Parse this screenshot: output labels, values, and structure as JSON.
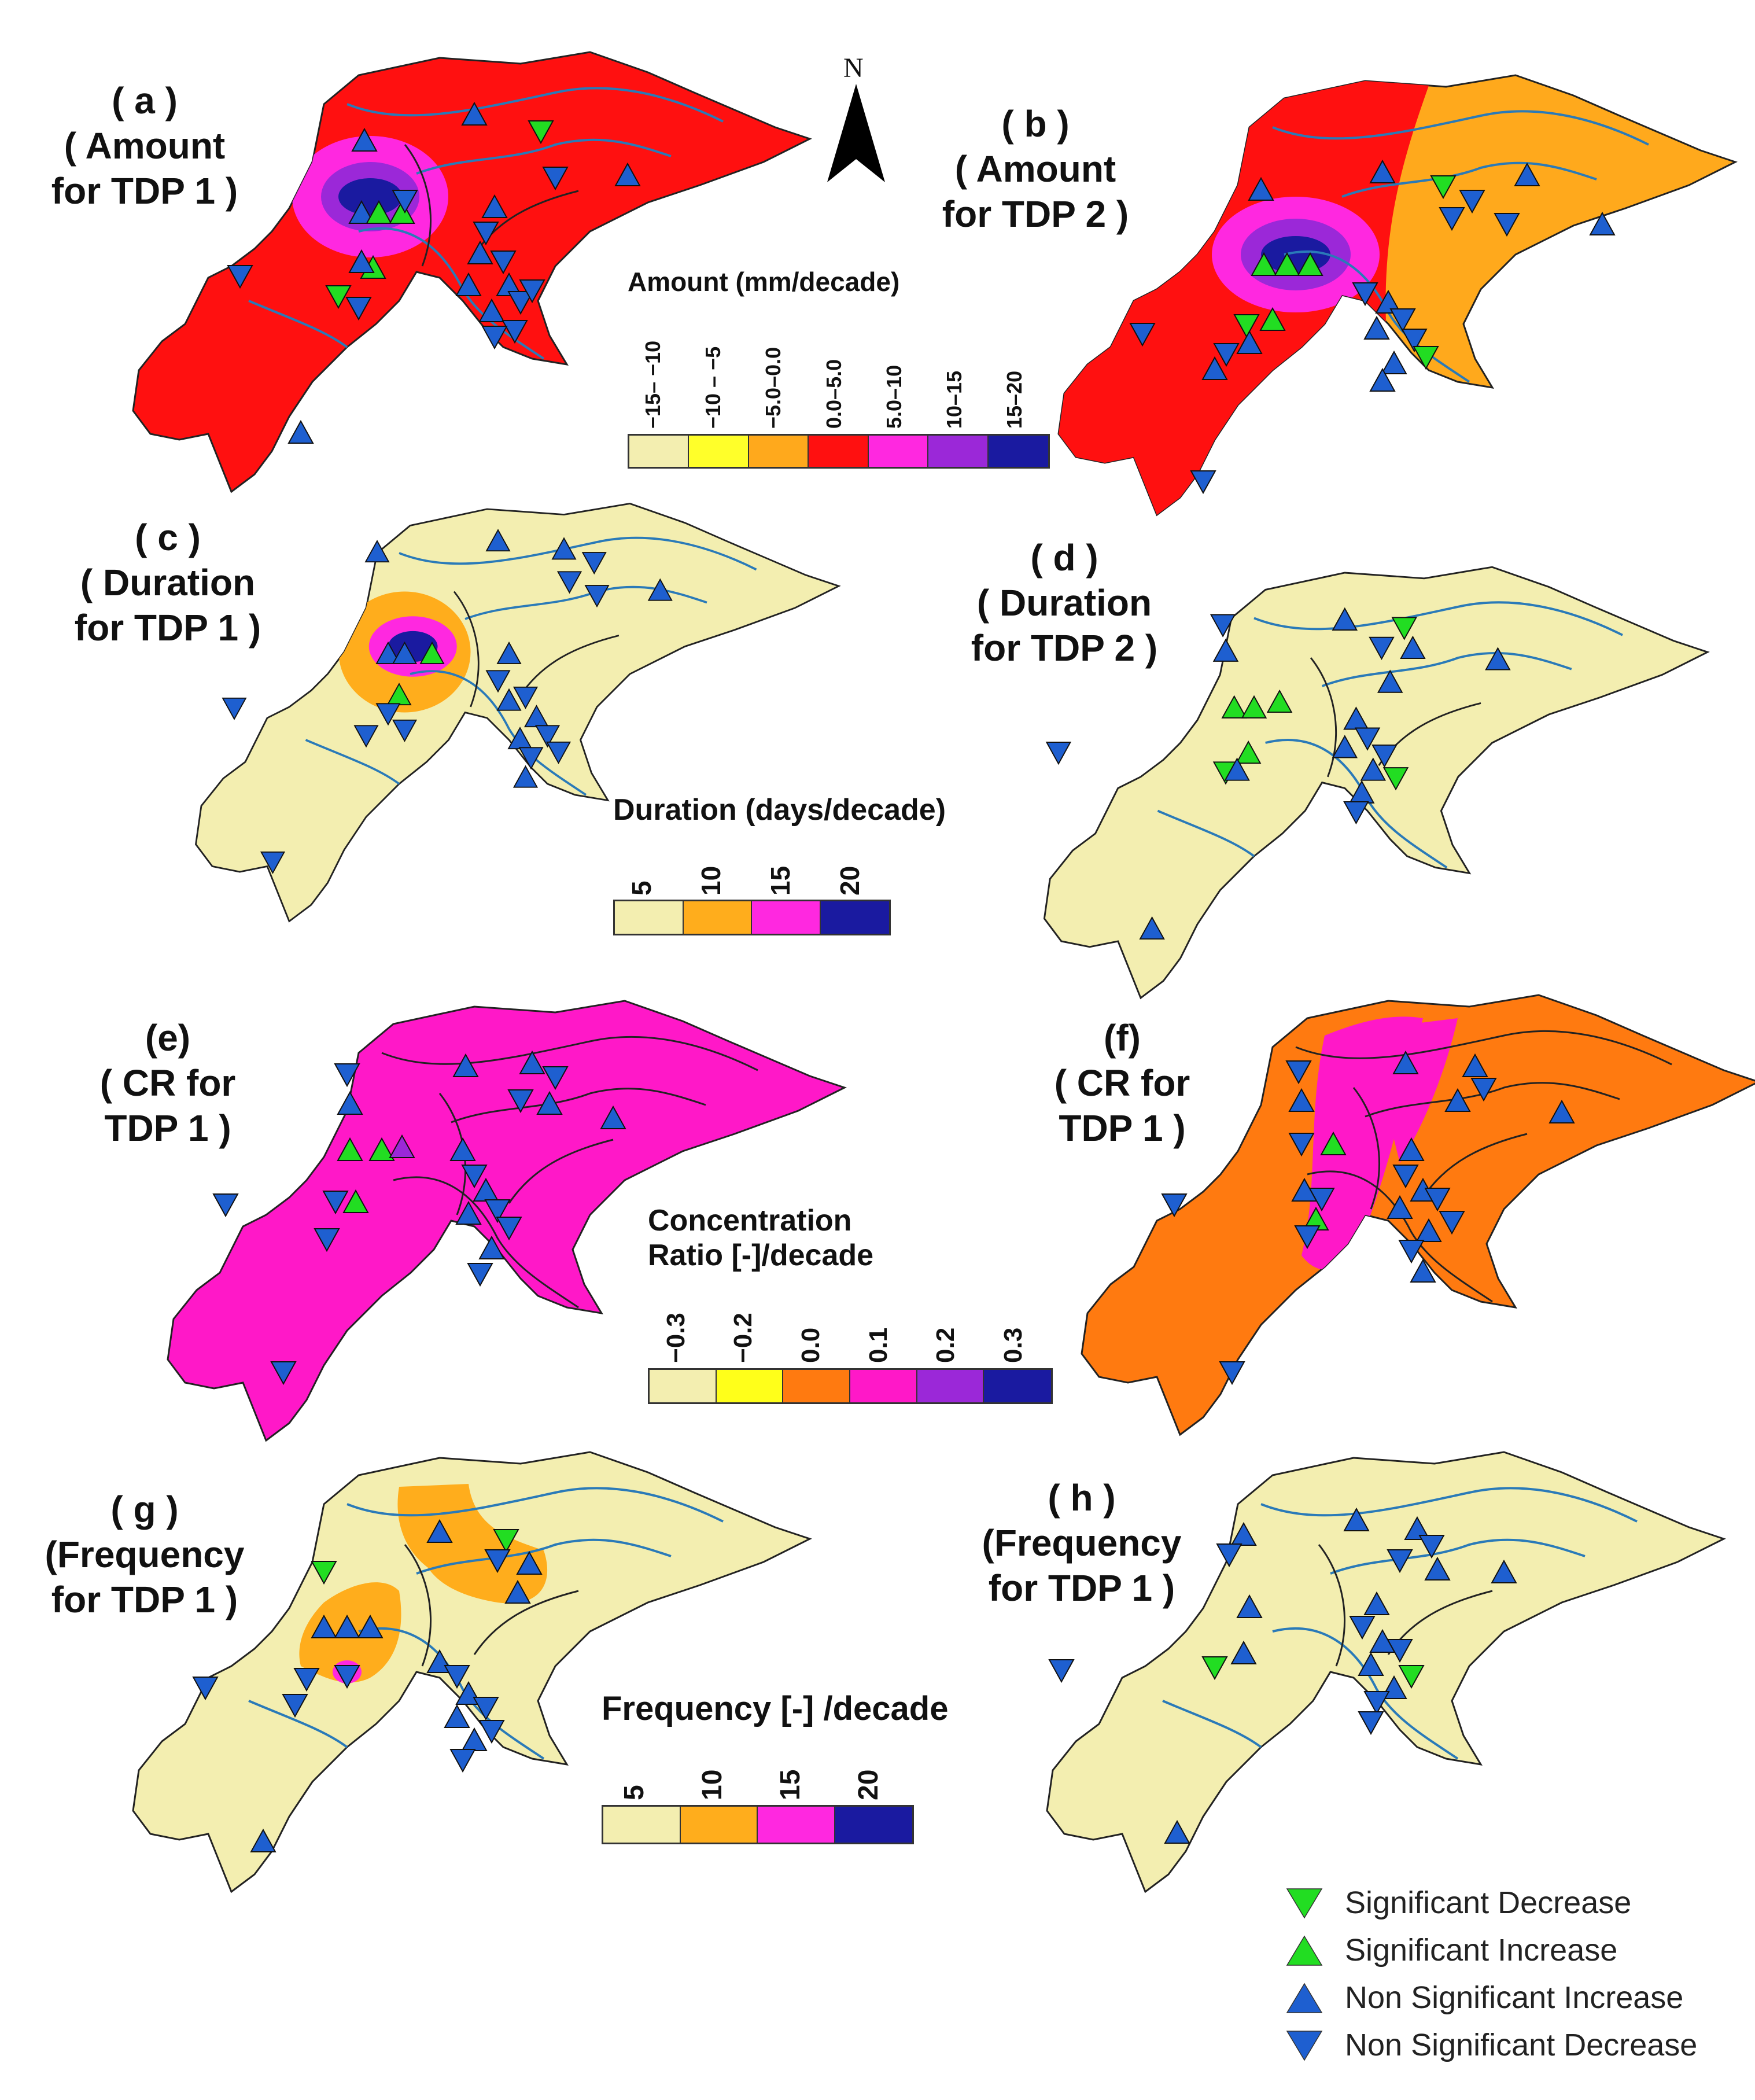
{
  "north_label": "N",
  "panels": [
    {
      "id": "a",
      "letter": "( a )",
      "line1": "( Amount",
      "line2": "for TDP 1 )"
    },
    {
      "id": "b",
      "letter": "( b )",
      "line1": "( Amount",
      "line2": "for TDP 2 )"
    },
    {
      "id": "c",
      "letter": "( c )",
      "line1": "( Duration",
      "line2": "for TDP 1 )"
    },
    {
      "id": "d",
      "letter": "( d )",
      "line1": "( Duration",
      "line2": "for TDP 2 )"
    },
    {
      "id": "e",
      "letter": "(e)",
      "line1": "( CR for",
      "line2": "TDP 1 )"
    },
    {
      "id": "f",
      "letter": "(f)",
      "line1": "( CR for",
      "line2": "TDP 1 )"
    },
    {
      "id": "g",
      "letter": "( g )",
      "line1": "(Frequency",
      "line2": "for TDP 1 )"
    },
    {
      "id": "h",
      "letter": "( h )",
      "line1": "(Frequency",
      "line2": "for TDP 1 )"
    }
  ],
  "legends": {
    "amount": {
      "title": "Amount (mm/decade)",
      "labels": [
        "−15– −10",
        "−10 – −5",
        "−5.0–0.0",
        "0.0–5.0",
        "5.0–10",
        "10–15",
        "15–20"
      ],
      "colors": [
        "#f3eeb0",
        "#ffff2a",
        "#ffa91c",
        "#ff1010",
        "#ff28e0",
        "#9b28d8",
        "#1a1aa0"
      ]
    },
    "duration": {
      "title": "Duration (days/decade)",
      "labels": [
        "5",
        "10",
        "15",
        "20"
      ],
      "colors": [
        "#f3eeb0",
        "#ffad1c",
        "#ff28e0",
        "#1a1aa0"
      ]
    },
    "cr": {
      "title_line1": "Concentration",
      "title_line2": "Ratio [-]/decade",
      "labels": [
        "−0.3",
        "−0.2",
        "0.0",
        "0.1",
        "0.2",
        "0.3"
      ],
      "colors": [
        "#f3eeb0",
        "#ffff1a",
        "#ff7a10",
        "#ff18c8",
        "#9b28d8",
        "#1a1aa0"
      ]
    },
    "frequency": {
      "title": "Frequency [-] /decade",
      "labels": [
        "5",
        "10",
        "15",
        "20"
      ],
      "colors": [
        "#f3eeb0",
        "#ffad1c",
        "#ff28e0",
        "#1a1aa0"
      ]
    }
  },
  "symbol_legend": [
    {
      "label": "Significant Decrease",
      "shape": "down-triangle",
      "color": "#22dd22"
    },
    {
      "label": "Significant Increase",
      "shape": "up-triangle",
      "color": "#22dd22"
    },
    {
      "label": "Non Significant Increase",
      "shape": "up-triangle",
      "color": "#1e5fd0"
    },
    {
      "label": "Non Significant Decrease",
      "shape": "down-triangle",
      "color": "#1e5fd0"
    }
  ],
  "map_colors": {
    "beige": "#f3eeb0",
    "red": "#ff1010",
    "orange_amount": "#ffa91c",
    "orange_cr": "#ff7a10",
    "magenta": "#ff28e0",
    "pink_cr": "#ff18c8",
    "purple": "#9b28d8",
    "navy": "#1a1aa0",
    "river": "#2a7ab8",
    "border": "#222222"
  }
}
